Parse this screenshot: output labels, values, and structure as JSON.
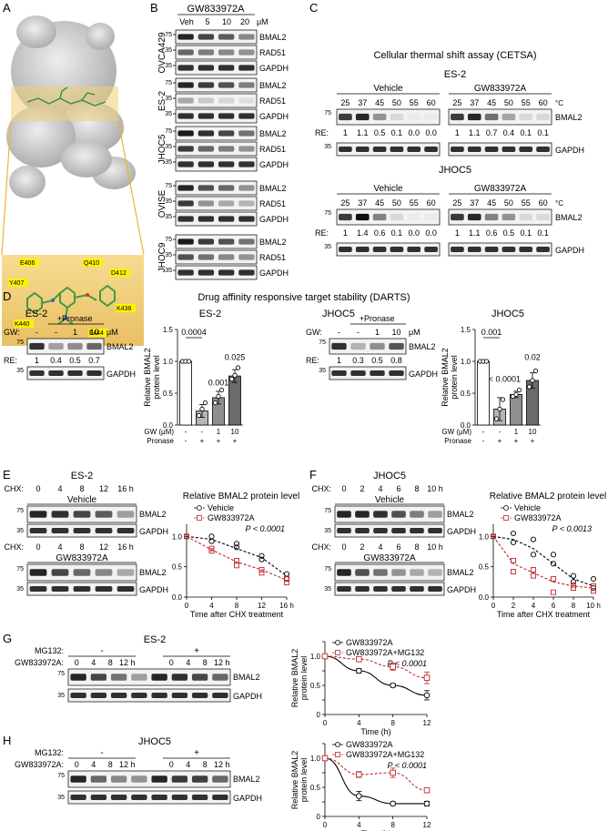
{
  "panels": {
    "A": {
      "letter": "A",
      "residues": [
        "E406",
        "Q410",
        "D412",
        "Y407",
        "K436",
        "K440",
        "F444"
      ]
    },
    "B": {
      "letter": "B",
      "title": "GW833972A",
      "doses": [
        "Veh",
        "5",
        "10",
        "20"
      ],
      "unit": "μM",
      "cell_lines": [
        "OVCA429",
        "ES-2",
        "JHOC5",
        "OVISE",
        "JHOC9"
      ],
      "bands": [
        "BMAL2",
        "RAD51",
        "GAPDH"
      ],
      "mw": [
        "75",
        "35",
        "35"
      ]
    },
    "C": {
      "letter": "C",
      "title": "Cellular thermal shift assay (CETSA)",
      "temps": [
        "25",
        "37",
        "45",
        "50",
        "55",
        "60"
      ],
      "temp_unit": "°C",
      "conditions": [
        "Vehicle",
        "GW833972A"
      ],
      "blocks": [
        {
          "cell": "ES-2",
          "re_vehicle": [
            "1",
            "1.1",
            "0.5",
            "0.1",
            "0.0",
            "0.0"
          ],
          "re_gw": [
            "1",
            "1.1",
            "0.7",
            "0.4",
            "0.1",
            "0.1"
          ]
        },
        {
          "cell": "JHOC5",
          "re_vehicle": [
            "1",
            "1.4",
            "0.6",
            "0.1",
            "0.0",
            "0.0"
          ],
          "re_gw": [
            "1",
            "1.1",
            "0.6",
            "0.5",
            "0.1",
            "0.1"
          ]
        }
      ],
      "re_label": "RE:",
      "bands": [
        "BMAL2",
        "GAPDH"
      ],
      "mw": [
        "75",
        "35"
      ]
    },
    "D": {
      "letter": "D",
      "title": "Drug affinity responsive target stability (DARTS)",
      "pronase_label": "+Pronase",
      "gw_label": "GW:",
      "unit": "μM",
      "lanes": [
        "-",
        "-",
        "1",
        "10"
      ],
      "re_label": "RE:",
      "blots": [
        {
          "cell": "ES-2",
          "re": [
            "1",
            "0.4",
            "0.5",
            "0.7"
          ]
        },
        {
          "cell": "JHOC5",
          "re": [
            "1",
            "0.3",
            "0.5",
            "0.8"
          ]
        }
      ],
      "bands": [
        "BMAL2",
        "GAPDH"
      ],
      "mw": [
        "75",
        "35"
      ],
      "bar_ylabel": [
        "Relative BMAL2",
        "protein level"
      ],
      "bar_xrows": [
        {
          "label": "GW (μM)",
          "vals": [
            "-",
            "-",
            "1",
            "10"
          ]
        },
        {
          "label": "Pronase",
          "vals": [
            "-",
            "+",
            "+",
            "+"
          ]
        }
      ],
      "bar_yticks": [
        "0.0",
        "0.5",
        "1.0",
        "1.5"
      ]
    },
    "E": {
      "letter": "E",
      "cell": "ES-2",
      "time_label": "CHX:",
      "times": [
        "0",
        "4",
        "8",
        "12",
        "16 h"
      ],
      "conditions": [
        "Vehicle",
        "GW833972A"
      ],
      "bands": [
        "BMAL2",
        "GAPDH"
      ],
      "mw": [
        "75",
        "35"
      ]
    },
    "F": {
      "letter": "F",
      "cell": "JHOC5",
      "time_label": "CHX:",
      "times": [
        "0",
        "2",
        "4",
        "6",
        "8",
        "10 h"
      ],
      "conditions": [
        "Vehicle",
        "GW833972A"
      ],
      "bands": [
        "BMAL2",
        "GAPDH"
      ],
      "mw": [
        "75",
        "35"
      ]
    },
    "G": {
      "letter": "G",
      "cell": "ES-2",
      "mg132_label": "MG132:",
      "mg132_states": [
        "-",
        "+"
      ],
      "gw_label": "GW833972A:",
      "times": [
        "0",
        "4",
        "8",
        "12 h",
        "0",
        "4",
        "8",
        "12 h"
      ],
      "bands": [
        "BMAL2",
        "GAPDH"
      ],
      "mw": [
        "75",
        "35"
      ]
    },
    "H": {
      "letter": "H",
      "cell": "JHOC5",
      "mg132_label": "MG132:",
      "mg132_states": [
        "-",
        "+"
      ],
      "gw_label": "GW833972A:",
      "times": [
        "0",
        "4",
        "8",
        "12 h",
        "0",
        "4",
        "8",
        "12 h"
      ],
      "bands": [
        "BMAL2",
        "GAPDH"
      ],
      "mw": [
        "75",
        "35"
      ]
    }
  },
  "colors": {
    "red": "#c0282d",
    "bar_dark": "#6b6b6b",
    "bar_mid": "#8f8f8f",
    "bar_light": "#b5b5b5",
    "protein": "#c9c9c9",
    "pocket": "#f3cf7a"
  },
  "chart_data": [
    {
      "type": "bar",
      "panel": "D",
      "title": "ES-2",
      "ylabel": "Relative BMAL2 protein level",
      "categories": [
        "GW - / Pronase -",
        "GW - / Pronase +",
        "GW 1 / Pronase +",
        "GW 10 / Pronase +"
      ],
      "values": [
        1.0,
        0.22,
        0.43,
        0.77
      ],
      "errors": [
        0.0,
        0.1,
        0.1,
        0.1
      ],
      "points": [
        [
          1.0,
          1.0,
          1.0
        ],
        [
          0.15,
          0.25,
          0.35
        ],
        [
          0.35,
          0.45,
          0.55
        ],
        [
          0.72,
          0.78,
          0.9
        ]
      ],
      "pvalues": [
        "0.0004",
        "0.001",
        "0.025"
      ],
      "ylim": [
        0,
        1.5
      ]
    },
    {
      "type": "bar",
      "panel": "D",
      "title": "JHOC5",
      "ylabel": "Relative BMAL2 protein level",
      "categories": [
        "GW - / Pronase -",
        "GW - / Pronase +",
        "GW 1 / Pronase +",
        "GW 10 / Pronase +"
      ],
      "values": [
        1.0,
        0.25,
        0.48,
        0.7
      ],
      "errors": [
        0.0,
        0.18,
        0.05,
        0.12
      ],
      "points": [
        [
          1.0,
          1.0,
          1.0
        ],
        [
          0.1,
          0.25,
          0.4
        ],
        [
          0.45,
          0.48,
          0.55
        ],
        [
          0.6,
          0.7,
          0.85
        ]
      ],
      "pvalues": [
        "0.001",
        "< 0.0001",
        "0.02"
      ],
      "ylim": [
        0,
        1.5
      ]
    },
    {
      "type": "line",
      "panel": "E",
      "title": "Relative BMAL2 protein level",
      "xlabel": "Time after CHX treatment",
      "x": [
        0,
        4,
        8,
        12,
        16
      ],
      "xunit": "h",
      "pvalue": "P < 0.0001",
      "series": [
        {
          "name": "Vehicle",
          "values": [
            1.0,
            0.95,
            0.8,
            0.65,
            0.35
          ],
          "points": [
            [
              0,
              1.0
            ],
            [
              4,
              1.0
            ],
            [
              4,
              0.92
            ],
            [
              8,
              0.88
            ],
            [
              8,
              0.82
            ],
            [
              12,
              0.68
            ],
            [
              12,
              0.62
            ],
            [
              16,
              0.38
            ],
            [
              16,
              0.3
            ]
          ]
        },
        {
          "name": "GW833972A",
          "values": [
            1.0,
            0.78,
            0.58,
            0.45,
            0.28
          ],
          "points": [
            [
              0,
              1.0
            ],
            [
              4,
              0.8
            ],
            [
              4,
              0.76
            ],
            [
              8,
              0.6
            ],
            [
              8,
              0.52
            ],
            [
              12,
              0.45
            ],
            [
              12,
              0.4
            ],
            [
              16,
              0.3
            ],
            [
              16,
              0.24
            ]
          ]
        }
      ],
      "ylim": [
        0,
        1.2
      ]
    },
    {
      "type": "line",
      "panel": "F",
      "title": "Relative BMAL2 protein level",
      "xlabel": "Time after CHX treatment",
      "x": [
        0,
        2,
        4,
        6,
        8,
        10
      ],
      "xunit": "h",
      "pvalue": "P < 0.0013",
      "series": [
        {
          "name": "Vehicle",
          "values": [
            1.0,
            0.95,
            0.8,
            0.55,
            0.3,
            0.18
          ],
          "points": [
            [
              0,
              1.0
            ],
            [
              2,
              1.05
            ],
            [
              2,
              0.9
            ],
            [
              4,
              0.95
            ],
            [
              4,
              0.7
            ],
            [
              6,
              0.7
            ],
            [
              6,
              0.55
            ],
            [
              8,
              0.35
            ],
            [
              8,
              0.25
            ],
            [
              10,
              0.3
            ],
            [
              10,
              0.15
            ]
          ]
        },
        {
          "name": "GW833972A",
          "values": [
            1.0,
            0.55,
            0.4,
            0.25,
            0.18,
            0.15
          ],
          "points": [
            [
              0,
              1.0
            ],
            [
              2,
              0.6
            ],
            [
              2,
              0.42
            ],
            [
              4,
              0.45
            ],
            [
              4,
              0.35
            ],
            [
              6,
              0.3
            ],
            [
              6,
              0.08
            ],
            [
              8,
              0.2
            ],
            [
              8,
              0.15
            ],
            [
              10,
              0.18
            ],
            [
              10,
              0.1
            ]
          ]
        }
      ],
      "ylim": [
        0,
        1.2
      ]
    },
    {
      "type": "line",
      "panel": "G",
      "ylabel": "Relative BMAL2 protein level",
      "xlabel": "Time (h)",
      "x": [
        0,
        4,
        8,
        12
      ],
      "pvalue": "P < 0.0001",
      "series": [
        {
          "name": "GW833972A",
          "values": [
            1.0,
            0.75,
            0.5,
            0.33
          ],
          "errors": [
            0.0,
            0.04,
            0.03,
            0.08
          ]
        },
        {
          "name": "GW833972A+MG132",
          "values": [
            1.0,
            0.95,
            0.82,
            0.63
          ],
          "errors": [
            0.0,
            0.03,
            0.06,
            0.1
          ]
        }
      ],
      "yticks": [
        0,
        0.25,
        0.5,
        0.75,
        1.0,
        1.25
      ],
      "ylim": [
        0,
        1.25
      ]
    },
    {
      "type": "line",
      "panel": "H",
      "ylabel": "Relative BMAL2 protein level",
      "xlabel": "Time (h)",
      "x": [
        0,
        4,
        8,
        12
      ],
      "pvalue": "P < 0.0001",
      "series": [
        {
          "name": "GW833972A",
          "values": [
            1.0,
            0.35,
            0.22,
            0.22
          ],
          "errors": [
            0.0,
            0.08,
            0.03,
            0.04
          ]
        },
        {
          "name": "GW833972A+MG132",
          "values": [
            1.0,
            0.72,
            0.75,
            0.45
          ],
          "errors": [
            0.0,
            0.05,
            0.08,
            0.04
          ]
        }
      ],
      "yticks": [
        0,
        0.25,
        0.5,
        0.75,
        1.0,
        1.25
      ],
      "ylim": [
        0,
        1.25
      ]
    }
  ]
}
